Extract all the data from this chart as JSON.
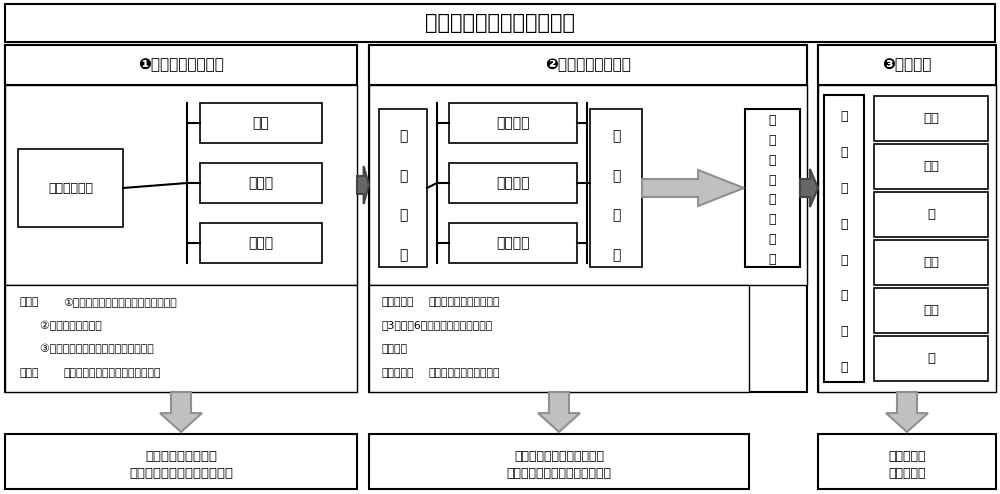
{
  "title": "小时分辨降水过程辨识方法",
  "bg_color": "#ffffff",
  "section1_header": "❶降水过程识别方法",
  "section2_header": "❷强度定量计算方法",
  "section3_header": "❸等级划分",
  "box1_main": "降雨过程定义",
  "box1_sub1": "站点",
  "box1_sub2": "大区域",
  "box1_sub3": "小区域",
  "box1_note_line1": "原则：①降水过程的成片性、集中性和移动性",
  "box1_note_line2": "      ②与天气系统匹配度",
  "box1_note_line3": "      ③地域差异、时空分布特征和致灾阈值",
  "box1_note_line4": "依据：中央气象台统计的大范围降水过程",
  "box1_bottom_line1": "实现全国范围内任意区域降水",
  "box1_bottom_line2": "过程客观化自动提取",
  "box2_main1_chars": [
    "评",
    "价",
    "指",
    "标"
  ],
  "box2_sub1": "降水强度",
  "box2_sub2": "覆盖范围",
  "box2_sub3": "持续时间",
  "box2_main2_chars": [
    "指",
    "数",
    "划",
    "分"
  ],
  "box2_right_chars": [
    "过",
    "程",
    "综",
    "合",
    "强",
    "度",
    "指",
    "数"
  ],
  "box2_note_line1": "降水强度：过程小时最大降水量、滑",
  "box2_note_line2": "动3小时和6小时最大降水量、小时平",
  "box2_note_line3": "均降水量",
  "box2_note_line4": "持续时间：考虑衰减的有效降水时间",
  "box2_note_bold1": "降水强度：",
  "box2_note_bold2": "持续时间：",
  "box2_bottom_line1": "实现任意站点和大区域、小区域",
  "box2_bottom_line2": "降水过程综合强度定量计算",
  "box3_label_chars": [
    "降",
    "水",
    "过",
    "程",
    "强",
    "度",
    "等",
    "级"
  ],
  "box3_items": [
    "极端",
    "特强",
    "强",
    "较强",
    "中等",
    "弱"
  ],
  "box3_bottom_line1": "面向业务应",
  "box3_bottom_line2": "用定性评价",
  "arrow_dark": "#555555",
  "arrow_gray": "#aaaaaa",
  "arrow_gray_ec": "#888888"
}
